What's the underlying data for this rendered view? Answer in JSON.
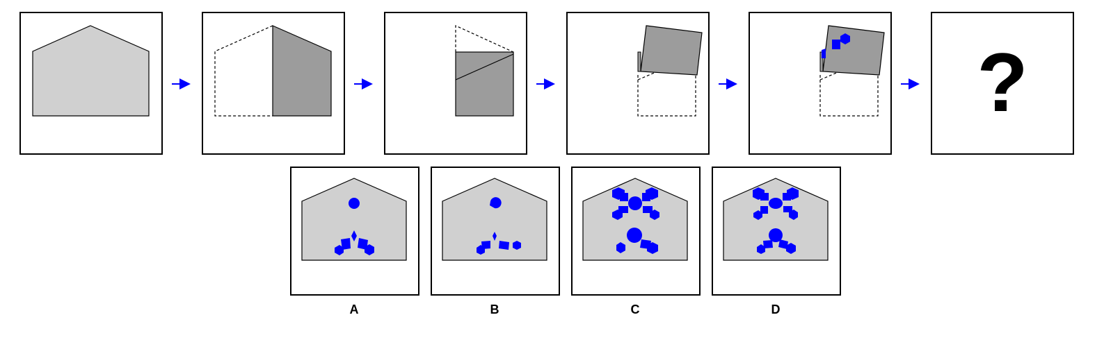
{
  "puzzle": {
    "question_mark": "?",
    "options": [
      {
        "letter": "A"
      },
      {
        "letter": "B"
      },
      {
        "letter": "C"
      },
      {
        "letter": "D"
      }
    ]
  },
  "colors": {
    "paper_fill": "#d0d0d0",
    "folded_fill": "#9c9c9c",
    "hole_blue": "#0000ff",
    "arrow_blue": "#0000ff",
    "frame": "#000000"
  }
}
